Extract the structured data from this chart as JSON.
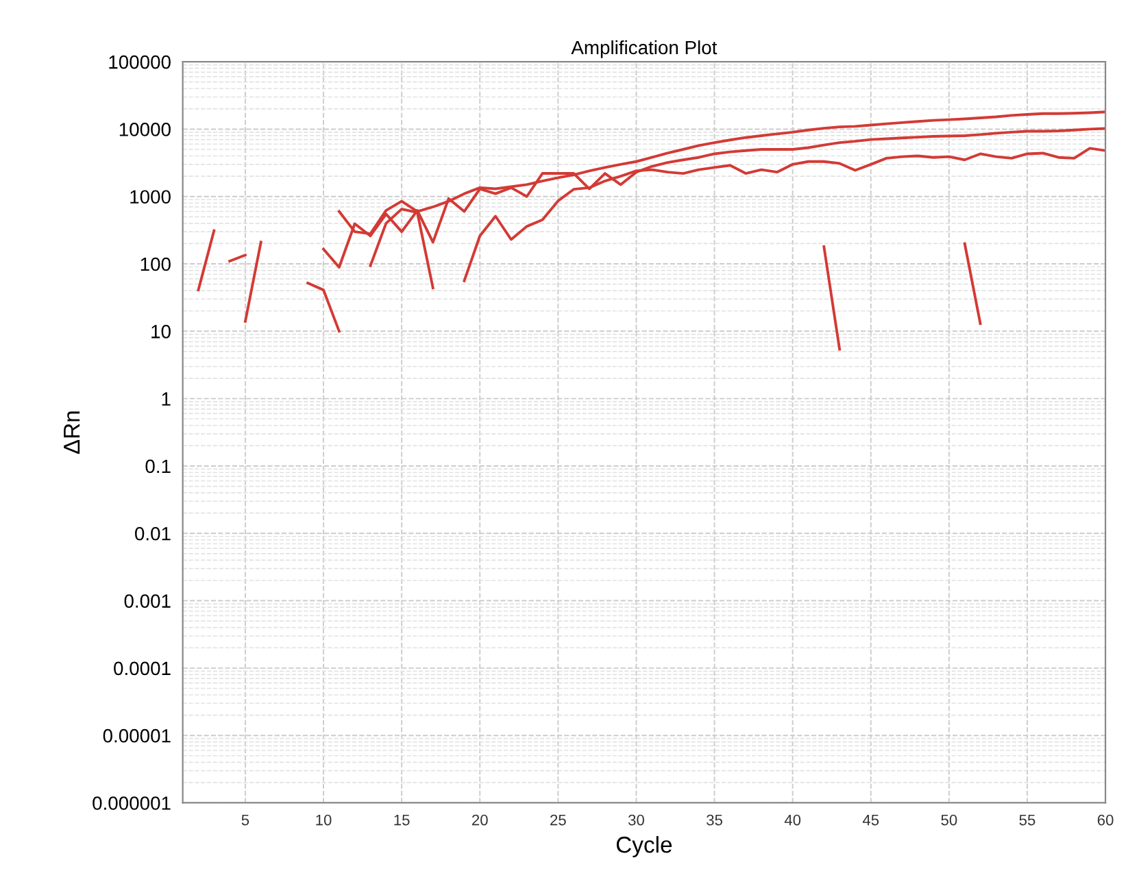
{
  "chart_data": {
    "type": "line",
    "title": "Amplification Plot",
    "xlabel": "Cycle",
    "ylabel": "ΔRn",
    "log": "y",
    "grid": true,
    "legend": false,
    "marker": "none",
    "line_style": "solid",
    "xlim": [
      1,
      60
    ],
    "xticks": [
      5,
      10,
      15,
      20,
      25,
      30,
      35,
      40,
      45,
      50,
      55,
      60
    ],
    "ylim": [
      1e-06,
      100000
    ],
    "yticks": [
      {
        "value": 1e-06,
        "label": "0.000001"
      },
      {
        "value": 1e-05,
        "label": "0.00001"
      },
      {
        "value": 0.0001,
        "label": "0.0001"
      },
      {
        "value": 0.001,
        "label": "0.001"
      },
      {
        "value": 0.01,
        "label": "0.01"
      },
      {
        "value": 0.1,
        "label": "0.1"
      },
      1,
      10,
      100,
      1000,
      10000,
      100000
    ],
    "series": [
      {
        "color": "#d33a35",
        "x": [
          2,
          3
        ],
        "values": [
          41,
          310
        ]
      },
      {
        "color": "#d33a35",
        "x": [
          4,
          5
        ],
        "values": [
          110,
          135
        ]
      },
      {
        "color": "#d33a35",
        "x": [
          5,
          6
        ],
        "values": [
          14,
          210
        ]
      },
      {
        "color": "#d33a35",
        "x": [
          9,
          10,
          11
        ],
        "values": [
          52,
          41,
          10
        ]
      },
      {
        "color": "#d33a35",
        "x": [
          42,
          43
        ],
        "values": [
          180,
          5.4
        ]
      },
      {
        "color": "#d33a35",
        "x": [
          51,
          52
        ],
        "values": [
          200,
          13
        ]
      },
      {
        "color": "#d33a35",
        "x": [
          11,
          12,
          13,
          14,
          15,
          16,
          17,
          18,
          19,
          20,
          21,
          22,
          23,
          24,
          25,
          26,
          27,
          28,
          29,
          30,
          31,
          32,
          33,
          34,
          35,
          36,
          37,
          38,
          39,
          40,
          41,
          42,
          43,
          44,
          45,
          46,
          47,
          48,
          49,
          50,
          51,
          52,
          53,
          54,
          55,
          56,
          57,
          58,
          59,
          60
        ],
        "values": [
          600,
          300,
          280,
          620,
          850,
          600,
          700,
          850,
          1100,
          1350,
          1300,
          1400,
          1500,
          1700,
          1900,
          2100,
          2400,
          2700,
          3000,
          3300,
          3800,
          4400,
          5000,
          5700,
          6300,
          6900,
          7500,
          8000,
          8500,
          9000,
          9700,
          10300,
          10800,
          11000,
          11500,
          12000,
          12500,
          13000,
          13500,
          13800,
          14200,
          14700,
          15200,
          16000,
          16500,
          17000,
          17000,
          17200,
          17500,
          18000
        ]
      },
      {
        "color": "#d33a35",
        "x": [
          10,
          11,
          12,
          13,
          14,
          15,
          16,
          17,
          18,
          19,
          20,
          21,
          22,
          23,
          24,
          25,
          26,
          27,
          28,
          29,
          30,
          31,
          32,
          33,
          34,
          35,
          36,
          37,
          38,
          39,
          40,
          41,
          42,
          43,
          44,
          45,
          46,
          47,
          48,
          49,
          50,
          51,
          52,
          53,
          54,
          55,
          56,
          57,
          58,
          59,
          60
        ],
        "values": [
          166,
          89,
          394,
          260,
          550,
          300,
          620,
          210,
          930,
          600,
          1300,
          1100,
          1350,
          1000,
          2200,
          2200,
          2200,
          1300,
          2200,
          1500,
          2300,
          2800,
          3200,
          3500,
          3800,
          4300,
          4600,
          4800,
          5000,
          5000,
          5000,
          5300,
          5800,
          6300,
          6600,
          7000,
          7200,
          7400,
          7600,
          7800,
          7900,
          8000,
          8300,
          8700,
          9000,
          9300,
          9300,
          9400,
          9700,
          10000,
          10200
        ]
      },
      {
        "color": "#d33a35",
        "x": [
          13,
          14,
          15,
          16,
          17,
          18,
          19,
          20,
          21,
          22,
          23,
          24,
          25,
          26,
          27,
          28,
          29,
          30,
          31,
          32,
          33,
          34,
          35,
          36,
          37,
          38,
          39,
          40,
          41,
          42,
          43,
          44,
          45,
          46,
          47,
          48,
          49,
          50,
          51,
          52,
          53,
          54,
          55,
          56,
          57,
          58,
          59,
          60
        ],
        "values": [
          94,
          400,
          650,
          580,
          44,
          null,
          56,
          260,
          510,
          230,
          360,
          450,
          860,
          1280,
          1350,
          1700,
          2000,
          2400,
          2500,
          2300,
          2200,
          2500,
          2700,
          2900,
          2200,
          2500,
          2300,
          3000,
          3300,
          3300,
          3100,
          2450,
          3000,
          3700,
          3900,
          4000,
          3800,
          3900,
          3500,
          4300,
          3900,
          3700,
          4300,
          4400,
          3800,
          3700,
          5200,
          4800
        ]
      }
    ]
  }
}
